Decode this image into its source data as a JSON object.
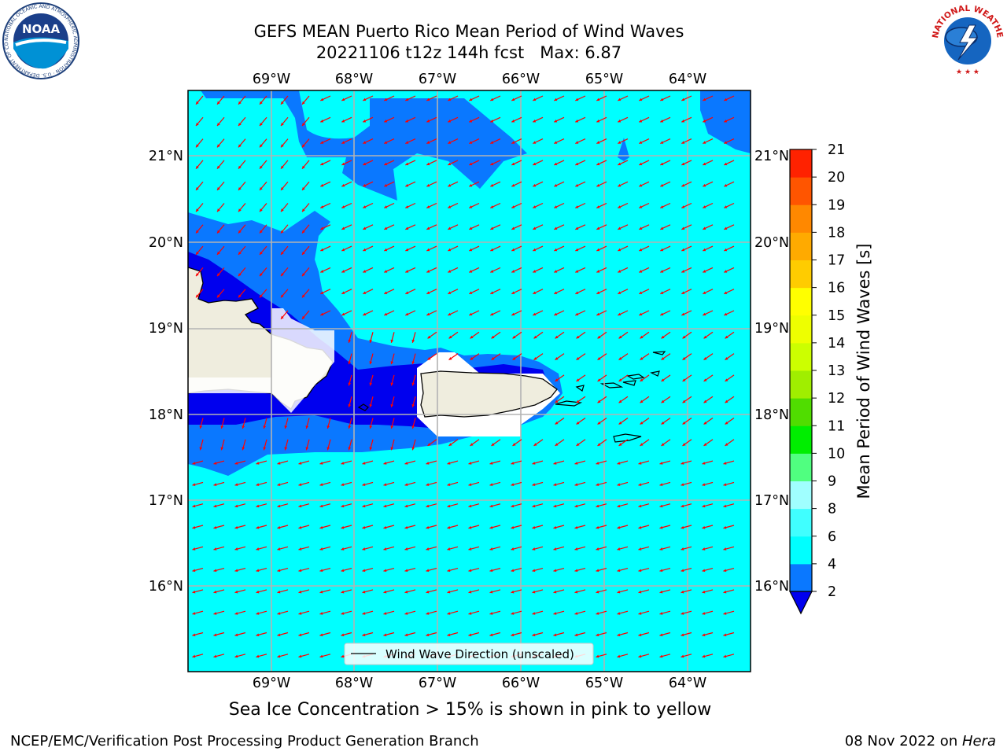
{
  "title": {
    "line1": "GEFS MEAN Puerto Rico Mean Period of Wind Waves",
    "line2": "20221106 t12z 144h fcst   Max: 6.87"
  },
  "map": {
    "longitude_labels": [
      "69°W",
      "68°W",
      "67°W",
      "66°W",
      "65°W",
      "64°W"
    ],
    "latitude_labels": [
      "21°N",
      "20°N",
      "19°N",
      "18°N",
      "17°N",
      "16°N"
    ],
    "legend_text": "Wind Wave Direction (unscaled)",
    "arrow_color": "#ff0000",
    "land_color": "#efedde",
    "grid_color": "#b3b3b3"
  },
  "colorbar": {
    "label": "Mean Period of Wind Waves [s]",
    "ticks": [
      "2",
      "4",
      "6",
      "8",
      "9",
      "10",
      "11",
      "12",
      "13",
      "14",
      "15",
      "16",
      "17",
      "18",
      "19",
      "20",
      "21"
    ],
    "colors": [
      "#0000ee",
      "#0a78ff",
      "#00ffff",
      "#40ffff",
      "#a0ffff",
      "#50ff80",
      "#00ee00",
      "#50dd00",
      "#a0ee00",
      "#ccff00",
      "#eeff00",
      "#ffff00",
      "#ffcc00",
      "#ffaa00",
      "#ff8800",
      "#ff5500",
      "#ff2200",
      "#ff0000"
    ]
  },
  "logos": {
    "left_name": "NOAA",
    "left_ring_text": "NATIONAL OCEANIC AND ATMOSPHERIC ADMINISTRATION · U.S. DEPARTMENT OF COMMERCE",
    "right_ring_text": "NATIONAL WEATHER SERVICE"
  },
  "note": "Sea Ice Concentration > 15% is shown in pink to yellow",
  "footer": {
    "left": "NCEP/EMC/Verification Post Processing Product Generation Branch",
    "right_date": "08 Nov 2022 on ",
    "right_host": "Hera"
  }
}
